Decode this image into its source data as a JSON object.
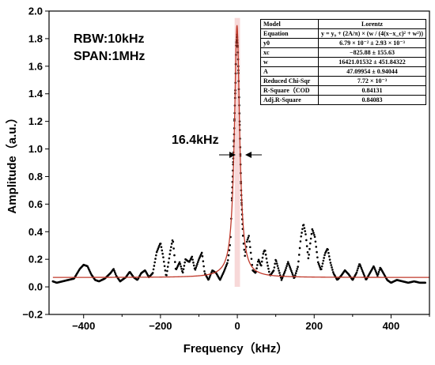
{
  "chart_data": {
    "type": "line",
    "xlabel": "Frequency（kHz）",
    "ylabel": "Amplitude（a.u.）",
    "xlim": [
      -490,
      500
    ],
    "ylim": [
      -0.2,
      2.0
    ],
    "xticks": [
      "-400",
      "-200",
      "0",
      "200",
      "400"
    ],
    "yticks": [
      "-0.2",
      "0.0",
      "0.2",
      "0.4",
      "0.6",
      "0.8",
      "1.0",
      "1.2",
      "1.4",
      "1.6",
      "1.8",
      "2.0"
    ],
    "annotations": {
      "rbw": "RBW:10kHz",
      "span": "SPAN:1MHz",
      "linewidth": "16.4kHz"
    },
    "fit_model": {
      "y0": 0.0679,
      "xc": -0.826,
      "w": 16.42,
      "A": 47.0995
    },
    "measured": [
      [
        -480,
        0.04
      ],
      [
        -470,
        0.03
      ],
      [
        -455,
        0.04
      ],
      [
        -440,
        0.05
      ],
      [
        -425,
        0.06
      ],
      [
        -410,
        0.13
      ],
      [
        -400,
        0.16
      ],
      [
        -390,
        0.15
      ],
      [
        -380,
        0.09
      ],
      [
        -370,
        0.05
      ],
      [
        -360,
        0.04
      ],
      [
        -345,
        0.06
      ],
      [
        -330,
        0.1
      ],
      [
        -322,
        0.13
      ],
      [
        -315,
        0.08
      ],
      [
        -305,
        0.04
      ],
      [
        -290,
        0.07
      ],
      [
        -280,
        0.11
      ],
      [
        -270,
        0.07
      ],
      [
        -260,
        0.05
      ],
      [
        -250,
        0.1
      ],
      [
        -240,
        0.12
      ],
      [
        -230,
        0.07
      ],
      [
        -220,
        0.1
      ],
      [
        -210,
        0.25
      ],
      [
        -200,
        0.32
      ],
      [
        -193,
        0.22
      ],
      [
        -185,
        0.07
      ],
      [
        -175,
        0.25
      ],
      [
        -168,
        0.35
      ],
      [
        -160,
        0.12
      ],
      [
        -150,
        0.18
      ],
      [
        -142,
        0.1
      ],
      [
        -135,
        0.2
      ],
      [
        -125,
        0.18
      ],
      [
        -118,
        0.22
      ],
      [
        -110,
        0.12
      ],
      [
        -100,
        0.2
      ],
      [
        -92,
        0.25
      ],
      [
        -85,
        0.1
      ],
      [
        -75,
        0.05
      ],
      [
        -65,
        0.12
      ],
      [
        -55,
        0.1
      ],
      [
        -45,
        0.05
      ],
      [
        -35,
        0.11
      ],
      [
        -25,
        0.18
      ],
      [
        -18,
        0.33
      ],
      [
        -12,
        0.8
      ],
      [
        -8,
        1.15
      ],
      [
        -5,
        1.48
      ],
      [
        -3,
        1.75
      ],
      [
        -1,
        1.83
      ],
      [
        1,
        1.75
      ],
      [
        3,
        1.55
      ],
      [
        6,
        1.2
      ],
      [
        10,
        0.7
      ],
      [
        15,
        0.35
      ],
      [
        20,
        0.22
      ],
      [
        25,
        0.33
      ],
      [
        30,
        0.37
      ],
      [
        35,
        0.25
      ],
      [
        40,
        0.12
      ],
      [
        48,
        0.1
      ],
      [
        55,
        0.2
      ],
      [
        62,
        0.15
      ],
      [
        68,
        0.25
      ],
      [
        72,
        0.27
      ],
      [
        78,
        0.17
      ],
      [
        85,
        0.08
      ],
      [
        95,
        0.12
      ],
      [
        100,
        0.2
      ],
      [
        108,
        0.12
      ],
      [
        115,
        0.05
      ],
      [
        125,
        0.12
      ],
      [
        132,
        0.18
      ],
      [
        140,
        0.12
      ],
      [
        148,
        0.06
      ],
      [
        158,
        0.15
      ],
      [
        165,
        0.35
      ],
      [
        172,
        0.46
      ],
      [
        178,
        0.38
      ],
      [
        185,
        0.2
      ],
      [
        190,
        0.32
      ],
      [
        195,
        0.42
      ],
      [
        202,
        0.36
      ],
      [
        210,
        0.18
      ],
      [
        218,
        0.12
      ],
      [
        228,
        0.24
      ],
      [
        235,
        0.28
      ],
      [
        242,
        0.18
      ],
      [
        250,
        0.1
      ],
      [
        260,
        0.05
      ],
      [
        270,
        0.08
      ],
      [
        280,
        0.12
      ],
      [
        290,
        0.09
      ],
      [
        300,
        0.05
      ],
      [
        310,
        0.1
      ],
      [
        318,
        0.17
      ],
      [
        325,
        0.12
      ],
      [
        335,
        0.05
      ],
      [
        345,
        0.1
      ],
      [
        355,
        0.15
      ],
      [
        365,
        0.08
      ],
      [
        372,
        0.14
      ],
      [
        380,
        0.1
      ],
      [
        390,
        0.05
      ],
      [
        400,
        0.03
      ],
      [
        415,
        0.05
      ],
      [
        430,
        0.04
      ],
      [
        445,
        0.03
      ],
      [
        460,
        0.04
      ],
      [
        475,
        0.03
      ],
      [
        490,
        0.03
      ]
    ]
  },
  "fit_table": {
    "header": [
      "Model",
      "Lorentz"
    ],
    "rows": [
      [
        "Equation",
        "y = y₀ + (2A/π) × (w / (4(x−x_c)² + w²))"
      ],
      [
        "y0",
        "6.79 × 10⁻² ± 2.93 × 10⁻³"
      ],
      [
        "xc",
        "−825.88 ± 155.63"
      ],
      [
        "w",
        "16421.01532 ± 451.84322"
      ],
      [
        "A",
        "47.09954 ± 0.94044"
      ],
      [
        "Reduced Chi-Sqr",
        "7.72 × 10⁻³"
      ],
      [
        "R-Square（COD",
        "0.84131"
      ],
      [
        "Adj.R-Square",
        "0.84083"
      ]
    ]
  },
  "colors": {
    "data_points": "#000000",
    "fit_line": "#c0392b",
    "highlight_band": "#f3c8c8"
  }
}
